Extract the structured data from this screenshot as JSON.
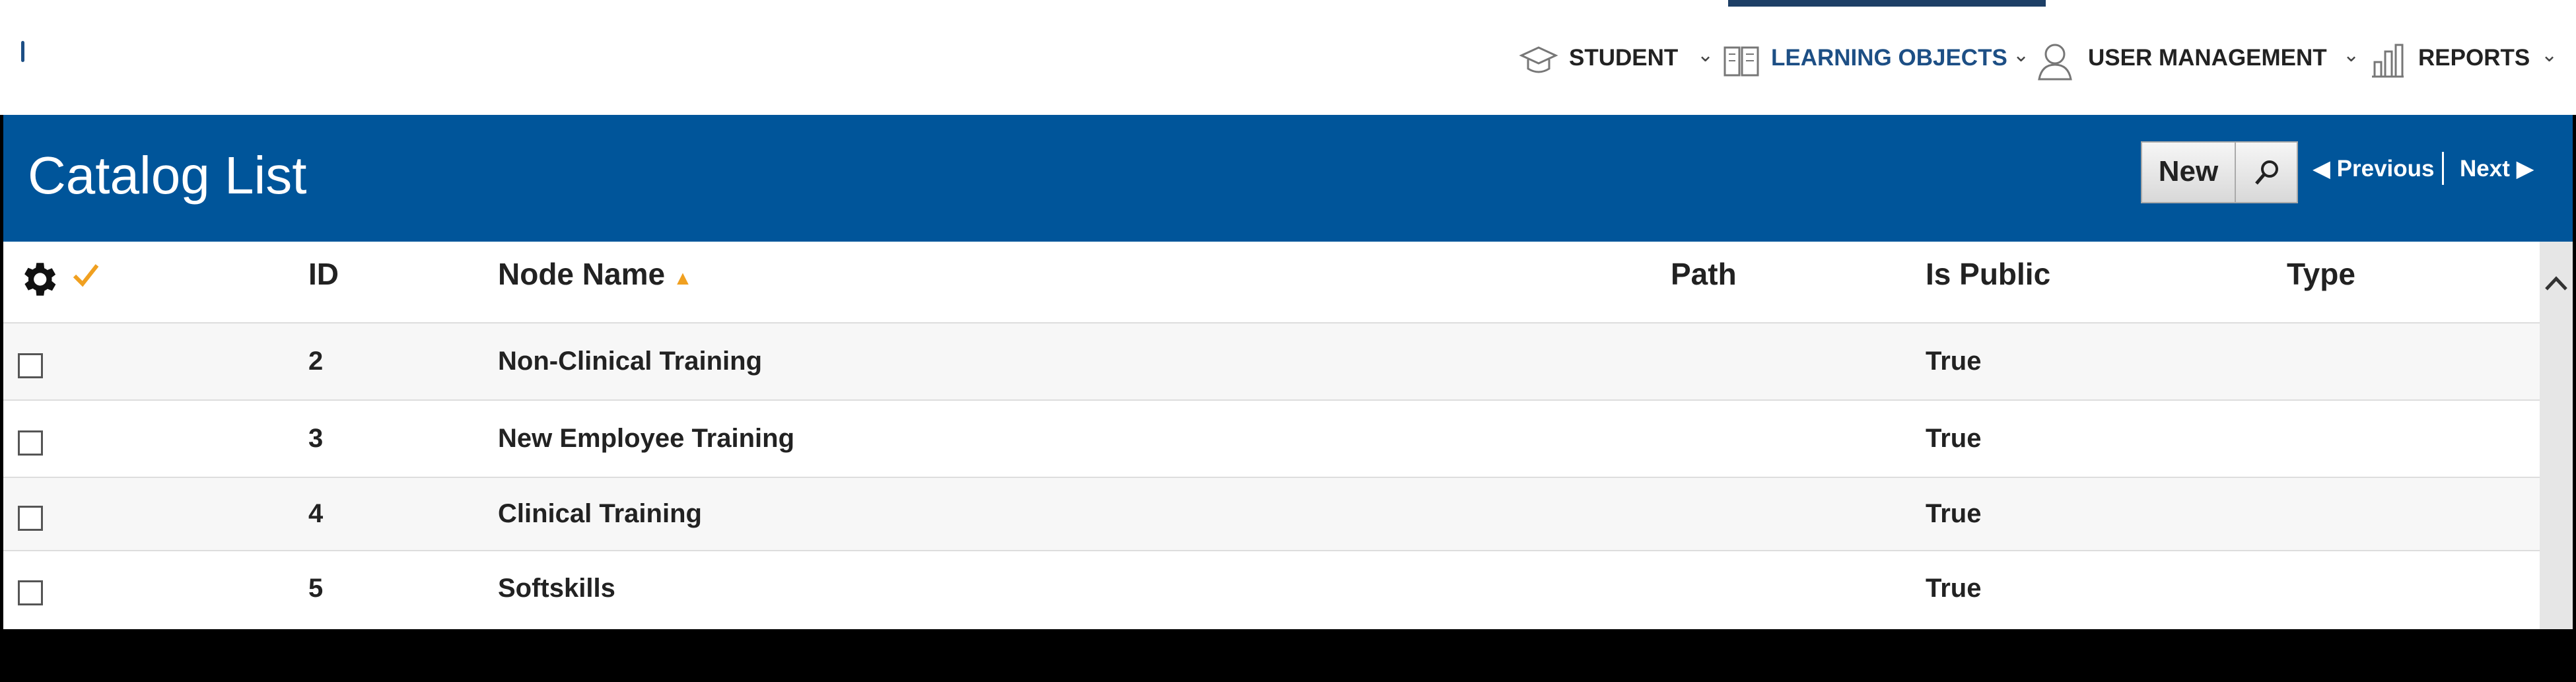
{
  "nav": [
    "STUDENT",
    "LEARNING OBJECTS",
    "USER MANAGEMENT",
    "REPORTS"
  ],
  "title": "Catalog List",
  "buttons": {
    "new": "New",
    "previous": "Previous",
    "next": "Next"
  },
  "table": {
    "headers": [
      "ID",
      "Node Name",
      "Path",
      "Is Public",
      "Type"
    ],
    "rows": [
      {
        "id": 2,
        "node_name": "Non-Clinical Training",
        "is_public": "True"
      },
      {
        "id": 3,
        "node_name": "New Employee Training",
        "is_public": "True"
      },
      {
        "id": 4,
        "node_name": "Clinical Training",
        "is_public": "True"
      },
      {
        "id": 5,
        "node_name": "Softskills",
        "is_public": "True"
      }
    ]
  }
}
